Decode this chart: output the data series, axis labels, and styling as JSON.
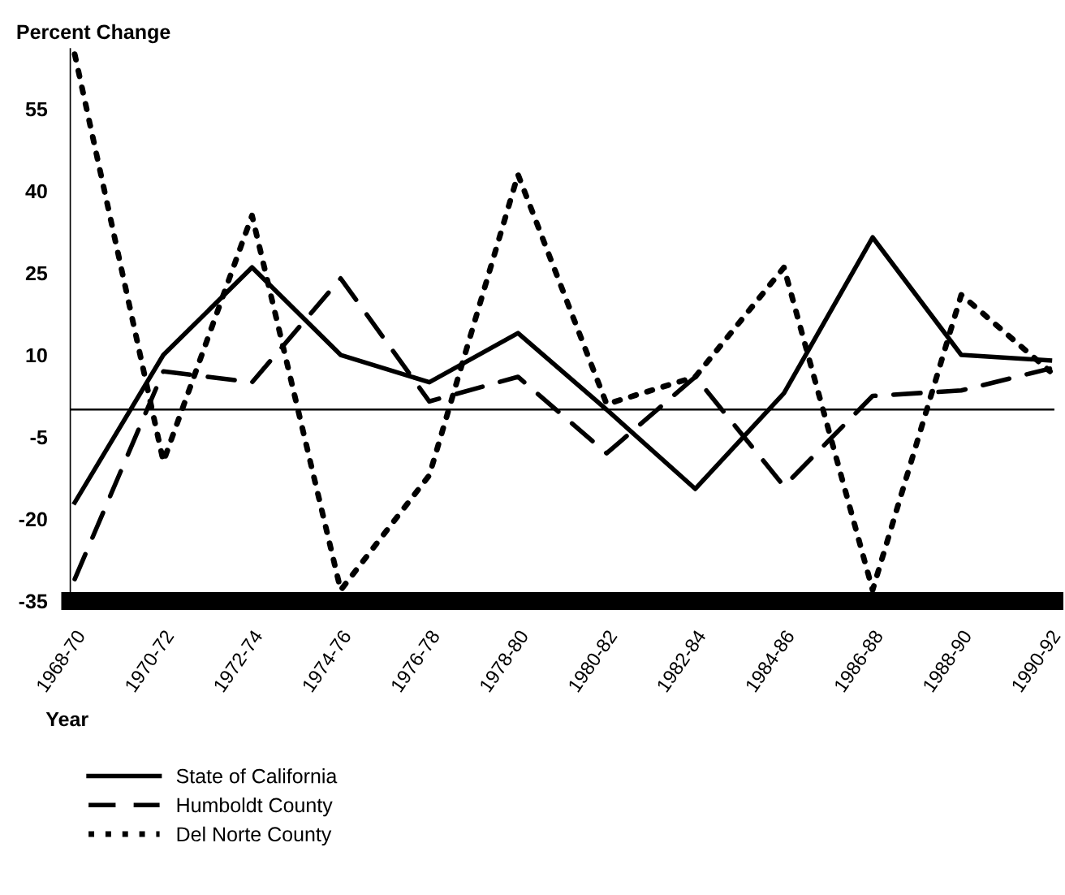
{
  "chart_data": {
    "type": "line",
    "ylabel": "Percent Change",
    "xlabel": "Year",
    "categories": [
      "1968-70",
      "1970-72",
      "1972-74",
      "1974-76",
      "1976-78",
      "1978-80",
      "1980-82",
      "1982-84",
      "1984-86",
      "1986-88",
      "1988-90",
      "1990-92"
    ],
    "series": [
      {
        "name": "State of California",
        "color": "#000000",
        "line_style": "solid",
        "values": [
          -17,
          10,
          26,
          10,
          5,
          14,
          0,
          -14.5,
          3,
          31.5,
          10,
          9
        ]
      },
      {
        "name": "Humboldt County",
        "color": "#000000",
        "line_style": "dashed",
        "values": [
          -31,
          7,
          5,
          24,
          1.5,
          6,
          -8,
          6,
          -14,
          2.5,
          3.5,
          7.5
        ]
      },
      {
        "name": "Del Norte County",
        "color": "#000000",
        "line_style": "dotted",
        "values": [
          65,
          -9.5,
          35.5,
          -33,
          -12,
          43,
          1,
          6,
          26,
          -33,
          21,
          7
        ]
      }
    ],
    "ylim": [
      -35,
      66
    ],
    "yticks": [
      -35,
      -20,
      -5,
      10,
      25,
      40,
      55
    ],
    "ref_lines": [
      {
        "axis": "y",
        "value": 0,
        "color": "#000000"
      }
    ],
    "grid": false,
    "legend": "bottom left",
    "marker": "none"
  }
}
